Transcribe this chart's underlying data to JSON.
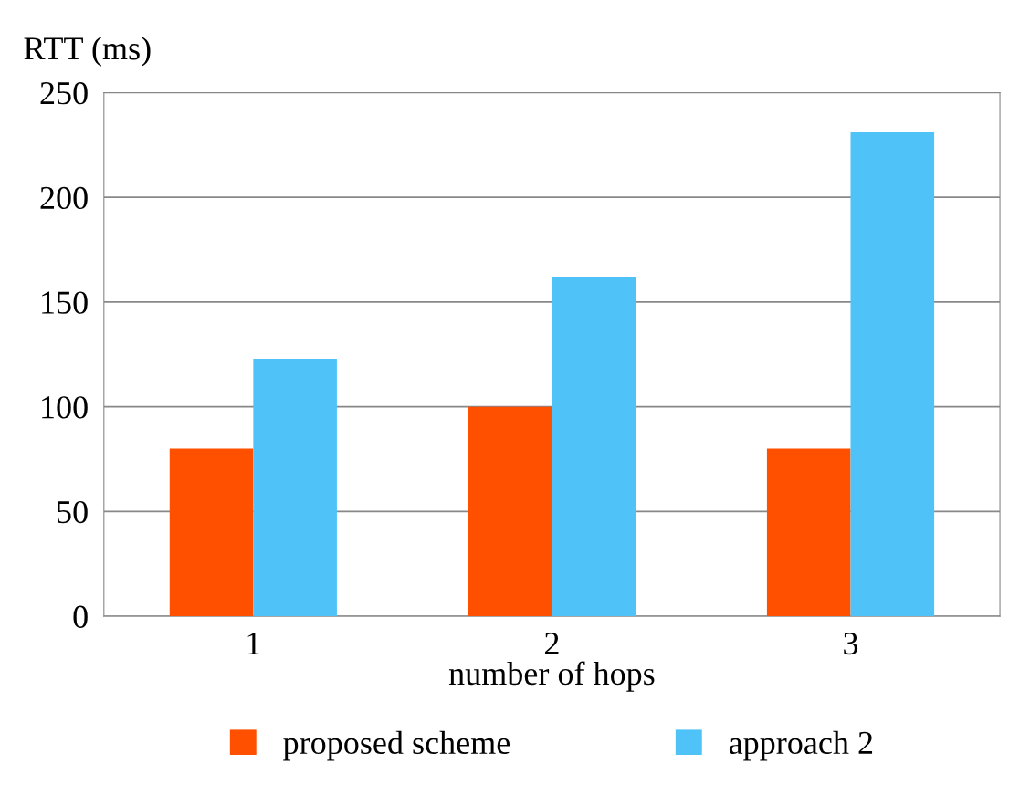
{
  "chart_data": {
    "type": "bar",
    "xlabel": "number of hops",
    "ylabel": "RTT (ms)",
    "categories": [
      "1",
      "2",
      "3"
    ],
    "series": [
      {
        "name": "proposed scheme",
        "color": "#ff5000",
        "values": [
          80,
          100,
          80
        ]
      },
      {
        "name": "approach 2",
        "color": "#4fc3f7",
        "values": [
          123,
          162,
          231
        ]
      }
    ],
    "ylim": [
      0,
      250
    ],
    "yticks": [
      0,
      50,
      100,
      150,
      200,
      250
    ],
    "grid": "y",
    "legend": "bottom"
  }
}
